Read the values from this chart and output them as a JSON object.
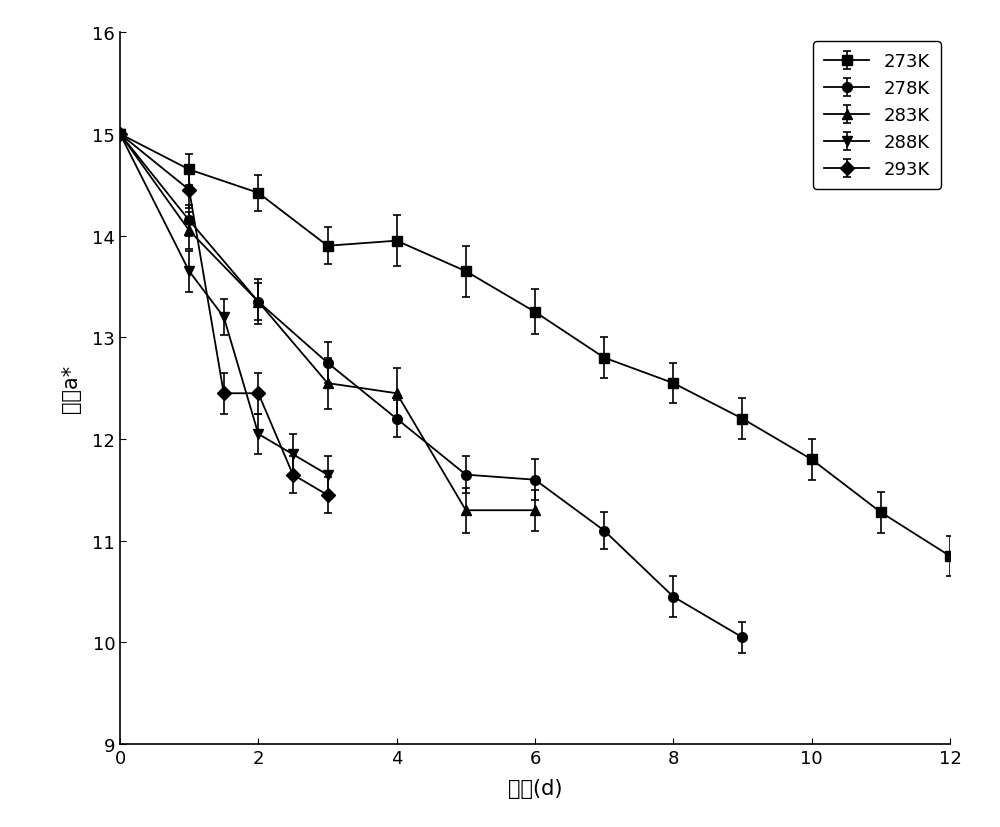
{
  "series": [
    {
      "x": [
        0,
        1,
        2,
        3,
        4,
        5,
        6,
        7,
        8,
        9,
        10,
        11,
        12
      ],
      "y": [
        15.0,
        14.65,
        14.42,
        13.9,
        13.95,
        13.65,
        13.25,
        12.8,
        12.55,
        12.2,
        11.8,
        11.28,
        10.85
      ],
      "yerr": [
        0.0,
        0.15,
        0.18,
        0.18,
        0.25,
        0.25,
        0.22,
        0.2,
        0.2,
        0.2,
        0.2,
        0.2,
        0.2
      ],
      "marker": "s",
      "label": "273K"
    },
    {
      "x": [
        0,
        1,
        2,
        3,
        4,
        5,
        6,
        7,
        8,
        9
      ],
      "y": [
        15.0,
        14.15,
        13.35,
        12.75,
        12.2,
        11.65,
        11.6,
        11.1,
        10.45,
        10.05
      ],
      "yerr": [
        0.0,
        0.15,
        0.18,
        0.2,
        0.18,
        0.18,
        0.2,
        0.18,
        0.2,
        0.15
      ],
      "marker": "o",
      "label": "278K"
    },
    {
      "x": [
        0,
        1,
        2,
        3,
        4,
        5,
        6
      ],
      "y": [
        15.0,
        14.05,
        13.35,
        12.55,
        12.45,
        11.3,
        11.3
      ],
      "yerr": [
        0.0,
        0.18,
        0.22,
        0.25,
        0.25,
        0.22,
        0.2
      ],
      "marker": "^",
      "label": "283K"
    },
    {
      "x": [
        0,
        1,
        1.5,
        2,
        2.5,
        3
      ],
      "y": [
        15.0,
        13.65,
        13.2,
        12.05,
        11.85,
        11.65
      ],
      "yerr": [
        0.0,
        0.2,
        0.18,
        0.2,
        0.2,
        0.18
      ],
      "marker": "v",
      "label": "288K"
    },
    {
      "x": [
        0,
        1,
        1.5,
        2,
        2.5,
        3
      ],
      "y": [
        15.0,
        14.45,
        12.45,
        12.45,
        11.65,
        11.45
      ],
      "yerr": [
        0.0,
        0.18,
        0.2,
        0.2,
        0.18,
        0.18
      ],
      "marker": "D",
      "label": "293K"
    }
  ],
  "xlabel": "时间(d)",
  "ylabel": "红度a*",
  "xlim": [
    0,
    12
  ],
  "ylim": [
    9,
    16
  ],
  "yticks": [
    9,
    10,
    11,
    12,
    13,
    14,
    15,
    16
  ],
  "xticks": [
    0,
    2,
    4,
    6,
    8,
    10,
    12
  ],
  "line_color": "#000000",
  "background_color": "#ffffff",
  "legend_fontsize": 13,
  "axis_fontsize": 15,
  "tick_fontsize": 13
}
